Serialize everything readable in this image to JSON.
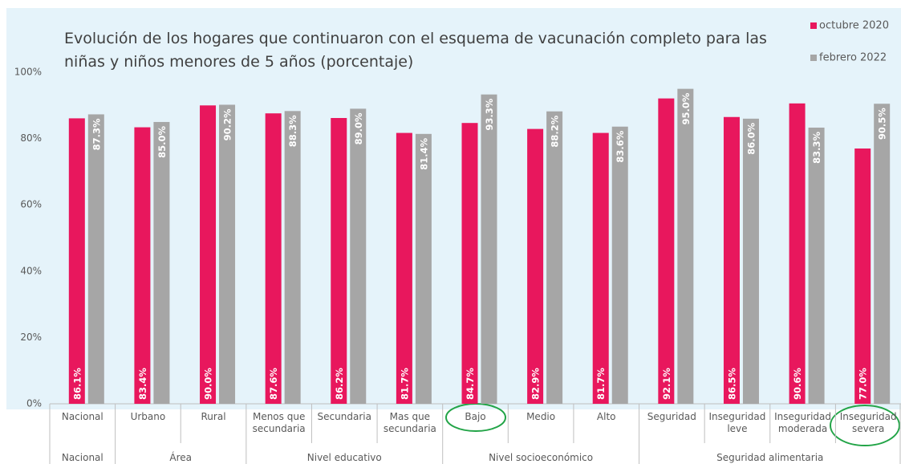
{
  "chart_data": {
    "type": "bar",
    "title": "Evolución de los hogares que continuaron con el esquema de vacunación completo para las niñas y niños menores de 5 años (porcentaje)",
    "groups": [
      {
        "name": "Nacional",
        "categories": [
          "Nacional"
        ]
      },
      {
        "name": "Área",
        "categories": [
          "Urbano",
          "Rural"
        ]
      },
      {
        "name": "Nivel educativo",
        "categories": [
          "Menos que secundaria",
          "Secundaria",
          "Mas que secundaria"
        ]
      },
      {
        "name": "Nivel socioeconómico",
        "categories": [
          "Bajo",
          "Medio",
          "Alto"
        ]
      },
      {
        "name": "Seguridad alimentaria",
        "categories": [
          "Seguridad",
          "Inseguridad leve",
          "Inseguridad moderada",
          "Inseguridad severa"
        ]
      }
    ],
    "series": [
      {
        "name": "octubre 2020",
        "color": "#e8175d",
        "values": [
          86.1,
          83.4,
          90.0,
          87.6,
          86.2,
          81.7,
          84.7,
          82.9,
          81.7,
          92.1,
          86.5,
          90.6,
          77.0
        ],
        "value_labels": [
          "86.1%",
          "83.4%",
          "90.0%",
          "87.6%",
          "86.2%",
          "81.7%",
          "84.7%",
          "82.9%",
          "81.7%",
          "92.1%",
          "86.5%",
          "90.6%",
          "77.0%"
        ]
      },
      {
        "name": "febrero 2022",
        "color": "#a6a6a6",
        "values": [
          87.3,
          85.0,
          90.2,
          88.3,
          89.0,
          81.4,
          93.3,
          88.2,
          83.6,
          95.0,
          86.0,
          83.3,
          90.5
        ],
        "value_labels": [
          "87.3%",
          "85.0%",
          "90.2%",
          "88.3%",
          "89.0%",
          "81.4%",
          "93.3%",
          "88.2%",
          "83.6%",
          "95.0%",
          "86.0%",
          "83.3%",
          "90.5%"
        ]
      }
    ],
    "ylim": [
      0,
      100
    ],
    "yticks": [
      {
        "value": 0,
        "label": "0%"
      },
      {
        "value": 20,
        "label": "20%"
      },
      {
        "value": 40,
        "label": "40%"
      },
      {
        "value": 60,
        "label": "60%"
      },
      {
        "value": 80,
        "label": "80%"
      },
      {
        "value": 100,
        "label": "100%"
      }
    ],
    "grid": false,
    "legend": "top-right"
  }
}
